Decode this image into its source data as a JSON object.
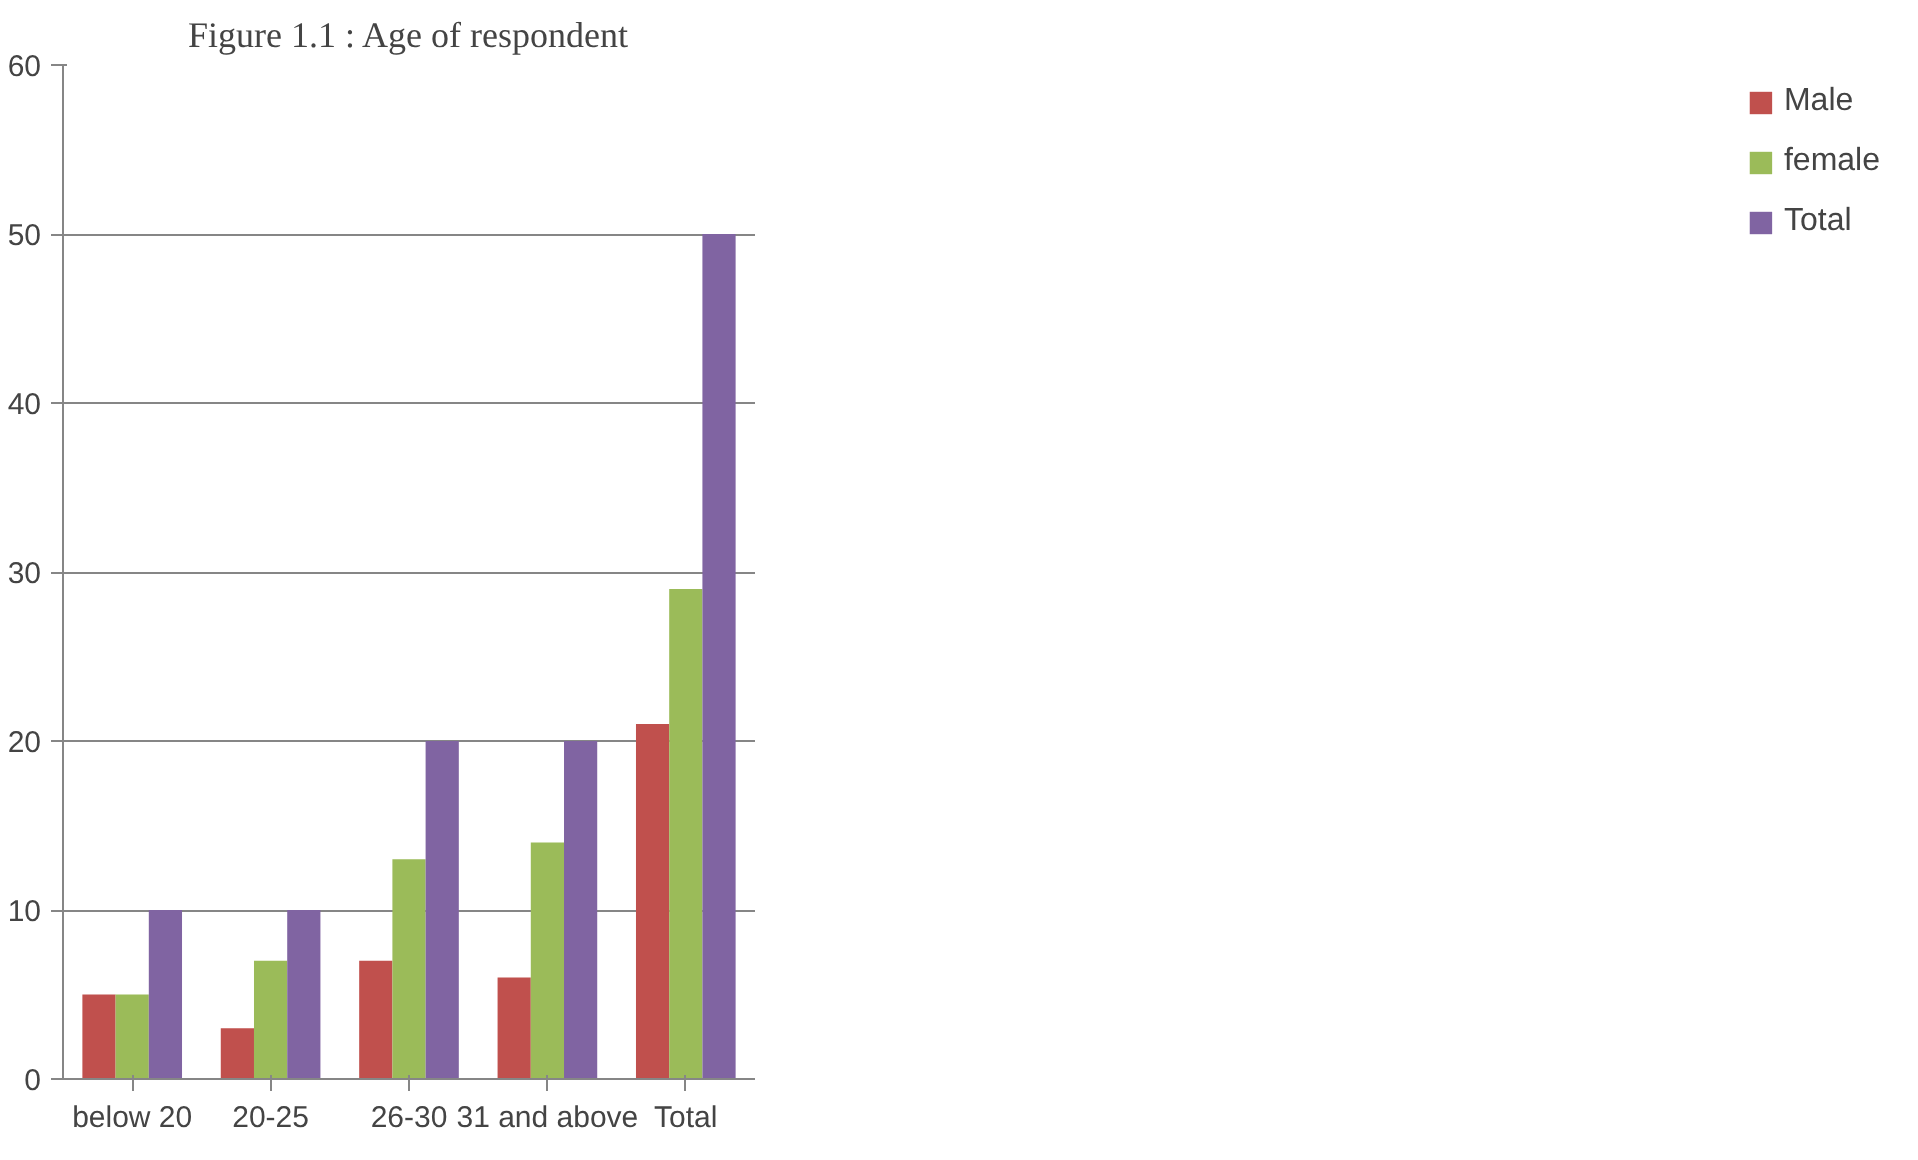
{
  "chart_data": {
    "type": "bar",
    "title": "Figure 1.1 : Age of respondent",
    "categories": [
      "below 20",
      "20-25",
      "26-30",
      "31 and above",
      "Total"
    ],
    "series": [
      {
        "name": "Male",
        "color": "#c0504d",
        "values": [
          5,
          3,
          7,
          6,
          21
        ]
      },
      {
        "name": "female",
        "color": "#9bbb59",
        "values": [
          5,
          7,
          13,
          14,
          29
        ]
      },
      {
        "name": "Total",
        "color": "#8064a2",
        "values": [
          10,
          10,
          20,
          20,
          50
        ]
      }
    ],
    "ylim": [
      0,
      60
    ],
    "yticks": [
      0,
      10,
      20,
      30,
      40,
      50,
      60
    ],
    "grid": "y",
    "legend": "right"
  }
}
